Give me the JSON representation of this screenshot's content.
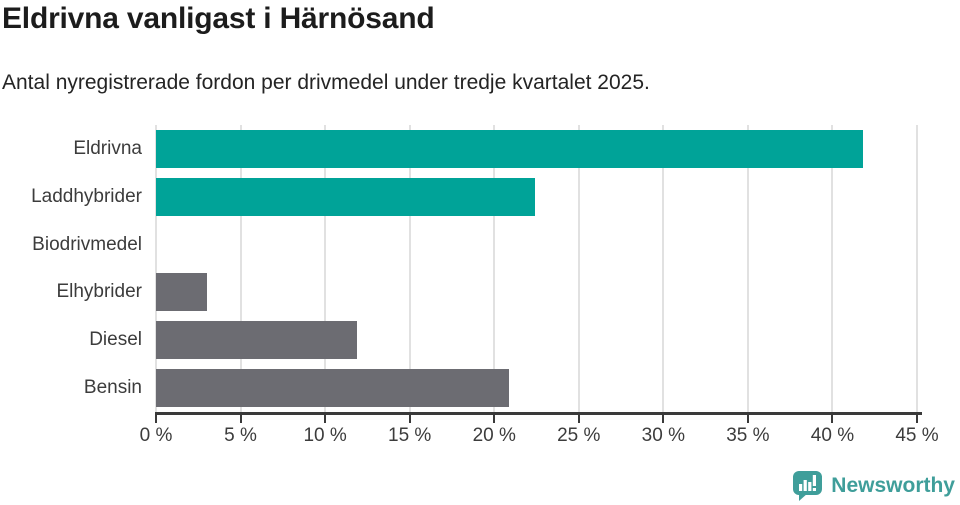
{
  "header": {
    "title": "Eldrivna vanligast i Härnösand",
    "subtitle": "Antal nyregistrerade fordon per drivmedel under tredje kvartalet 2025."
  },
  "brand": {
    "name": "Newsworthy",
    "color": "#3f9e9a",
    "icon": "bar-chart-speech-bubble-icon"
  },
  "colors": {
    "teal": "#00a398",
    "gray": "#6c6c72",
    "axis": "#3a3a3a",
    "grid": "#e1e1e1",
    "label_text": "#3c3c3c",
    "title_text": "#1c1c1c"
  },
  "chart_data": {
    "type": "bar",
    "orientation": "horizontal",
    "title": "Eldrivna vanligast i Härnösand",
    "subtitle": "Antal nyregistrerade fordon per drivmedel under tredje kvartalet 2025.",
    "categories": [
      "Eldrivna",
      "Laddhybrider",
      "Biodrivmedel",
      "Elhybrider",
      "Diesel",
      "Bensin"
    ],
    "values": [
      41.8,
      22.4,
      0,
      3.0,
      11.9,
      20.9
    ],
    "bar_colors": [
      "#00a398",
      "#00a398",
      "#00a398",
      "#6c6c72",
      "#6c6c72",
      "#6c6c72"
    ],
    "xlabel": "",
    "ylabel": "",
    "xlim": [
      0,
      45
    ],
    "xticks": [
      0,
      5,
      10,
      15,
      20,
      25,
      30,
      35,
      40,
      45
    ],
    "tick_suffix": " %",
    "grid": true,
    "legend": false
  }
}
